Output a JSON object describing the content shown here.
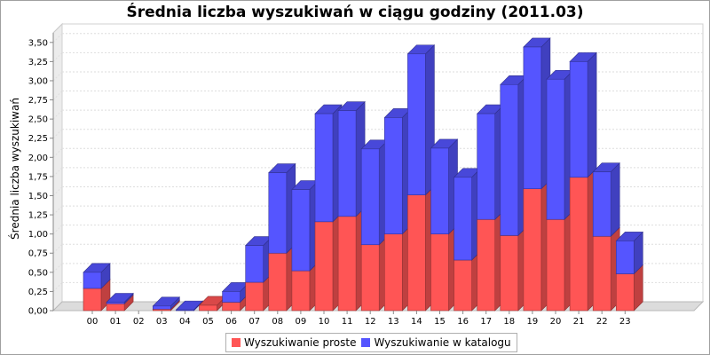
{
  "chart_data": {
    "type": "bar",
    "stacked": true,
    "style": "3d",
    "title": "Średnia liczba wyszukiwań w ciągu godziny (2011.03)",
    "ylabel": "Średnia liczba wyszukiwań",
    "xlabel": "",
    "ylim": [
      0,
      3.625
    ],
    "yticks": [
      "0,00",
      "0,25",
      "0,50",
      "0,75",
      "1,00",
      "1,25",
      "1,50",
      "1,75",
      "2,00",
      "2,25",
      "2,50",
      "2,75",
      "3,00",
      "3,25",
      "3,50"
    ],
    "categories": [
      "00",
      "01",
      "02",
      "03",
      "04",
      "05",
      "06",
      "07",
      "08",
      "09",
      "10",
      "11",
      "12",
      "13",
      "14",
      "15",
      "16",
      "17",
      "18",
      "19",
      "20",
      "21",
      "22",
      "23"
    ],
    "series": [
      {
        "name": "Wyszukiwanie proste",
        "color": "#ff5555",
        "values": [
          0.29,
          0.09,
          0.0,
          0.02,
          0.0,
          0.07,
          0.11,
          0.37,
          0.75,
          0.52,
          1.16,
          1.23,
          0.86,
          1.0,
          1.51,
          1.0,
          0.66,
          1.19,
          0.98,
          1.59,
          1.19,
          1.74,
          0.97,
          0.48
        ]
      },
      {
        "name": "Wyszukiwanie w katalogu",
        "color": "#5555ff",
        "values": [
          0.21,
          0.02,
          0.0,
          0.04,
          0.01,
          0.0,
          0.14,
          0.48,
          1.05,
          1.06,
          1.41,
          1.38,
          1.25,
          1.52,
          1.84,
          1.12,
          1.08,
          1.38,
          1.97,
          1.85,
          1.83,
          1.51,
          0.84,
          0.43
        ]
      }
    ],
    "legend_position": "bottom",
    "grid": true
  }
}
